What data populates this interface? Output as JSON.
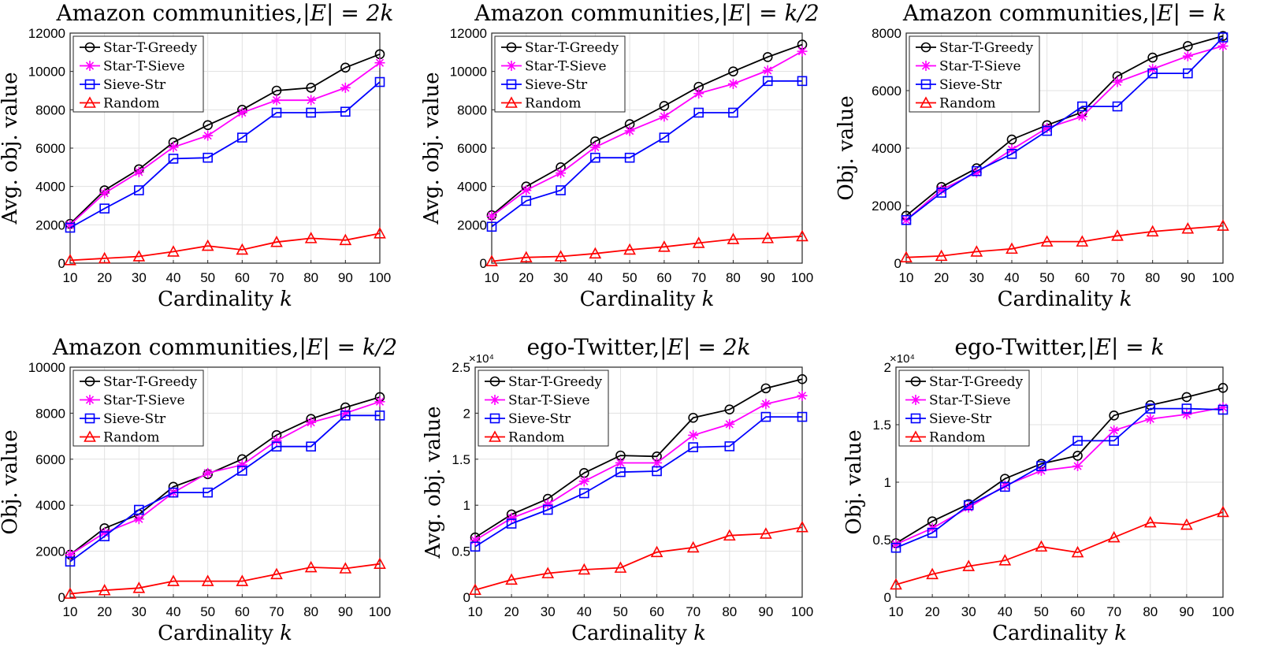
{
  "figure_title": "",
  "chart_data": [
    {
      "type": "line",
      "title_text": "Amazon communities,",
      "title_math": "|E| = 2k",
      "xlabel_text": "Cardinality",
      "xlabel_var": "k",
      "ylabel": "Avg. obj. value",
      "x": [
        10,
        20,
        30,
        40,
        50,
        60,
        70,
        80,
        90,
        100
      ],
      "xlim": [
        10,
        100
      ],
      "ylim": [
        0,
        12000
      ],
      "yticks": [
        0,
        2000,
        4000,
        6000,
        8000,
        10000,
        12000
      ],
      "ytick_labels": [
        "0",
        "2000",
        "4000",
        "6000",
        "8000",
        "10000",
        "12000"
      ],
      "y_exponent": "",
      "grid": true,
      "legend_position": "top-left",
      "series": [
        {
          "name": "Star-T-Greedy",
          "color": "#000000",
          "marker": "circle",
          "values": [
            2050,
            3800,
            4900,
            6300,
            7200,
            8000,
            9000,
            9150,
            10200,
            10900
          ]
        },
        {
          "name": "Star-T-Sieve",
          "color": "#ff00ff",
          "marker": "star",
          "values": [
            2000,
            3650,
            4750,
            6050,
            6650,
            7850,
            8500,
            8500,
            9150,
            10450
          ]
        },
        {
          "name": "Sieve-Str",
          "color": "#0000ff",
          "marker": "square",
          "values": [
            1850,
            2850,
            3800,
            5450,
            5500,
            6550,
            7850,
            7850,
            7900,
            9450
          ]
        },
        {
          "name": "Random",
          "color": "#ff0000",
          "marker": "triangle",
          "values": [
            150,
            250,
            350,
            600,
            900,
            700,
            1100,
            1300,
            1200,
            1550
          ]
        }
      ]
    },
    {
      "type": "line",
      "title_text": "Amazon communities,",
      "title_math": "|E| = k/2",
      "xlabel_text": "Cardinality",
      "xlabel_var": "k",
      "ylabel": "Avg. obj. value",
      "x": [
        10,
        20,
        30,
        40,
        50,
        60,
        70,
        80,
        90,
        100
      ],
      "xlim": [
        10,
        100
      ],
      "ylim": [
        0,
        12000
      ],
      "yticks": [
        0,
        2000,
        4000,
        6000,
        8000,
        10000,
        12000
      ],
      "ytick_labels": [
        "0",
        "2000",
        "4000",
        "6000",
        "8000",
        "10000",
        "12000"
      ],
      "y_exponent": "",
      "grid": true,
      "legend_position": "top-left",
      "series": [
        {
          "name": "Star-T-Greedy",
          "color": "#000000",
          "marker": "circle",
          "values": [
            2500,
            4000,
            5000,
            6350,
            7250,
            8200,
            9200,
            10000,
            10750,
            11400
          ]
        },
        {
          "name": "Star-T-Sieve",
          "color": "#ff00ff",
          "marker": "star",
          "values": [
            2450,
            3800,
            4700,
            6050,
            6900,
            7650,
            8850,
            9350,
            10050,
            11050
          ]
        },
        {
          "name": "Sieve-Str",
          "color": "#0000ff",
          "marker": "square",
          "values": [
            1900,
            3250,
            3800,
            5500,
            5500,
            6550,
            7850,
            7850,
            9500,
            9500
          ]
        },
        {
          "name": "Random",
          "color": "#ff0000",
          "marker": "triangle",
          "values": [
            100,
            300,
            350,
            500,
            700,
            850,
            1050,
            1250,
            1300,
            1400
          ]
        }
      ]
    },
    {
      "type": "line",
      "title_text": "Amazon communities,",
      "title_math": "|E| = k",
      "xlabel_text": "Cardinality",
      "xlabel_var": "k",
      "ylabel": "Obj. value",
      "x": [
        10,
        20,
        30,
        40,
        50,
        60,
        70,
        80,
        90,
        100
      ],
      "xlim": [
        10,
        100
      ],
      "ylim": [
        0,
        8000
      ],
      "yticks": [
        0,
        2000,
        4000,
        6000,
        8000
      ],
      "ytick_labels": [
        "0",
        "2000",
        "4000",
        "6000",
        "8000"
      ],
      "y_exponent": "",
      "grid": true,
      "legend_position": "top-left",
      "series": [
        {
          "name": "Star-T-Greedy",
          "color": "#000000",
          "marker": "circle",
          "values": [
            1650,
            2650,
            3300,
            4300,
            4800,
            5250,
            6500,
            7150,
            7550,
            7900
          ]
        },
        {
          "name": "Star-T-Sieve",
          "color": "#ff00ff",
          "marker": "star",
          "values": [
            1500,
            2550,
            3150,
            3950,
            4700,
            5100,
            6300,
            6750,
            7200,
            7550
          ]
        },
        {
          "name": "Sieve-Str",
          "color": "#0000ff",
          "marker": "square",
          "values": [
            1500,
            2450,
            3200,
            3800,
            4600,
            5450,
            5450,
            6600,
            6600,
            7850
          ]
        },
        {
          "name": "Random",
          "color": "#ff0000",
          "marker": "triangle",
          "values": [
            200,
            250,
            400,
            500,
            750,
            750,
            950,
            1100,
            1200,
            1300
          ]
        }
      ]
    },
    {
      "type": "line",
      "title_text": "Amazon communities,",
      "title_math": "|E| = k/2",
      "xlabel_text": "Cardinality",
      "xlabel_var": "k",
      "ylabel": "Obj. value",
      "x": [
        10,
        20,
        30,
        40,
        50,
        60,
        70,
        80,
        90,
        100
      ],
      "xlim": [
        10,
        100
      ],
      "ylim": [
        0,
        10000
      ],
      "yticks": [
        0,
        2000,
        4000,
        6000,
        8000,
        10000
      ],
      "ytick_labels": [
        "0",
        "2000",
        "4000",
        "6000",
        "8000",
        "10000"
      ],
      "y_exponent": "",
      "grid": true,
      "legend_position": "top-left",
      "series": [
        {
          "name": "Star-T-Greedy",
          "color": "#000000",
          "marker": "circle",
          "values": [
            1850,
            3000,
            3600,
            4800,
            5350,
            6000,
            7050,
            7750,
            8250,
            8700
          ]
        },
        {
          "name": "Star-T-Sieve",
          "color": "#ff00ff",
          "marker": "star",
          "values": [
            1850,
            2800,
            3400,
            4550,
            5400,
            5750,
            6800,
            7600,
            8000,
            8500
          ]
        },
        {
          "name": "Sieve-Str",
          "color": "#0000ff",
          "marker": "square",
          "values": [
            1550,
            2650,
            3800,
            4550,
            4550,
            5500,
            6550,
            6550,
            7900,
            7900
          ]
        },
        {
          "name": "Random",
          "color": "#ff0000",
          "marker": "triangle",
          "values": [
            150,
            300,
            400,
            700,
            700,
            700,
            1000,
            1300,
            1250,
            1450
          ]
        }
      ]
    },
    {
      "type": "line",
      "title_text": "ego-Twitter,",
      "title_math": "|E| = 2k",
      "xlabel_text": "Cardinality",
      "xlabel_var": "k",
      "ylabel": "Avg. obj. value",
      "x": [
        10,
        20,
        30,
        40,
        50,
        60,
        70,
        80,
        90,
        100
      ],
      "xlim": [
        10,
        100
      ],
      "ylim": [
        0,
        25000
      ],
      "yticks": [
        0,
        5000,
        10000,
        15000,
        20000,
        25000
      ],
      "ytick_labels": [
        "0",
        "0.5",
        "1",
        "1.5",
        "2",
        "2.5"
      ],
      "y_exponent": "×10⁴",
      "grid": true,
      "legend_position": "top-left",
      "series": [
        {
          "name": "Star-T-Greedy",
          "color": "#000000",
          "marker": "circle",
          "values": [
            6500,
            9000,
            10700,
            13500,
            15400,
            15300,
            19500,
            20400,
            22700,
            23700
          ]
        },
        {
          "name": "Star-T-Sieve",
          "color": "#ff00ff",
          "marker": "star",
          "values": [
            6200,
            8600,
            10100,
            12600,
            14600,
            14600,
            17600,
            18800,
            21000,
            21900
          ]
        },
        {
          "name": "Sieve-Str",
          "color": "#0000ff",
          "marker": "square",
          "values": [
            5500,
            8000,
            9500,
            11300,
            13600,
            13700,
            16300,
            16400,
            19600,
            19600
          ]
        },
        {
          "name": "Random",
          "color": "#ff0000",
          "marker": "triangle",
          "values": [
            800,
            1900,
            2600,
            3000,
            3200,
            4900,
            5400,
            6700,
            6900,
            7600
          ]
        }
      ]
    },
    {
      "type": "line",
      "title_text": "ego-Twitter,",
      "title_math": "|E| = k",
      "xlabel_text": "Cardinality",
      "xlabel_var": "k",
      "ylabel": "Obj. value",
      "x": [
        10,
        20,
        30,
        40,
        50,
        60,
        70,
        80,
        90,
        100
      ],
      "xlim": [
        10,
        100
      ],
      "ylim": [
        0,
        20000
      ],
      "yticks": [
        0,
        5000,
        10000,
        15000,
        20000
      ],
      "ytick_labels": [
        "0",
        "0.5",
        "1",
        "1.5",
        "2"
      ],
      "y_exponent": "×10⁴",
      "grid": true,
      "legend_position": "top-left",
      "series": [
        {
          "name": "Star-T-Greedy",
          "color": "#000000",
          "marker": "circle",
          "values": [
            4700,
            6600,
            8100,
            10300,
            11600,
            12300,
            15800,
            16700,
            17400,
            18200
          ]
        },
        {
          "name": "Star-T-Sieve",
          "color": "#ff00ff",
          "marker": "star",
          "values": [
            4600,
            6000,
            7800,
            9700,
            11000,
            11400,
            14500,
            15500,
            15900,
            16500
          ]
        },
        {
          "name": "Sieve-Str",
          "color": "#0000ff",
          "marker": "square",
          "values": [
            4300,
            5600,
            8000,
            9600,
            11400,
            13600,
            13600,
            16400,
            16400,
            16300
          ]
        },
        {
          "name": "Random",
          "color": "#ff0000",
          "marker": "triangle",
          "values": [
            1100,
            2000,
            2700,
            3200,
            4400,
            3900,
            5200,
            6500,
            6300,
            7400
          ]
        }
      ]
    }
  ]
}
